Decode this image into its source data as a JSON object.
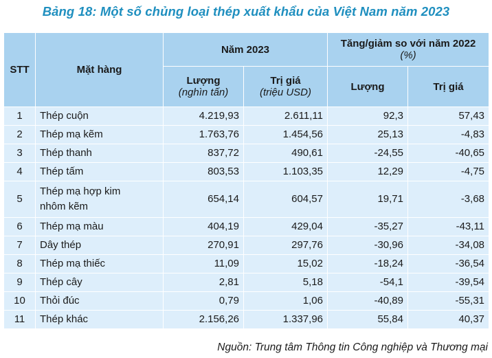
{
  "title": "Bảng 18: Một số chủng loại thép xuất khẩu của Việt Nam năm 2023",
  "header": {
    "stt": "STT",
    "item": "Mặt hàng",
    "year_group": "Năm 2023",
    "change_group": "Tăng/giảm so với năm 2022",
    "change_unit": "(%)",
    "qty": "Lượng",
    "qty_unit": "(nghìn tấn)",
    "value": "Trị giá",
    "value_unit": "(triệu USD)",
    "qty_change": "Lượng",
    "value_change": "Trị giá"
  },
  "rows": [
    {
      "stt": "1",
      "name": "Thép cuộn",
      "qty": "4.219,93",
      "value": "2.611,11",
      "qty_change": "92,3",
      "value_change": "57,43"
    },
    {
      "stt": "2",
      "name": "Thép mạ kẽm",
      "qty": "1.763,76",
      "value": "1.454,56",
      "qty_change": "25,13",
      "value_change": "-4,83"
    },
    {
      "stt": "3",
      "name": "Thép thanh",
      "qty": "837,72",
      "value": "490,61",
      "qty_change": "-24,55",
      "value_change": "-40,65"
    },
    {
      "stt": "4",
      "name": "Thép tấm",
      "qty": "803,53",
      "value": "1.103,35",
      "qty_change": "12,29",
      "value_change": "-4,75"
    },
    {
      "stt": "5",
      "name_line1": "Thép mạ hợp kim",
      "name_line2": "nhôm kẽm",
      "qty": "654,14",
      "value": "604,57",
      "qty_change": "19,71",
      "value_change": "-3,68"
    },
    {
      "stt": "6",
      "name": "Thép mạ màu",
      "qty": "404,19",
      "value": "429,04",
      "qty_change": "-35,27",
      "value_change": "-43,11"
    },
    {
      "stt": "7",
      "name": "Dây thép",
      "qty": "270,91",
      "value": "297,76",
      "qty_change": "-30,96",
      "value_change": "-34,08"
    },
    {
      "stt": "8",
      "name": "Thép mạ thiếc",
      "qty": "11,09",
      "value": "15,02",
      "qty_change": "-18,24",
      "value_change": "-36,54"
    },
    {
      "stt": "9",
      "name": "Thép cây",
      "qty": "2,81",
      "value": "5,18",
      "qty_change": "-54,1",
      "value_change": "-39,54"
    },
    {
      "stt": "10",
      "name": "Thỏi đúc",
      "qty": "0,79",
      "value": "1,06",
      "qty_change": "-40,89",
      "value_change": "-55,31"
    },
    {
      "stt": "11",
      "name": "Thép khác",
      "qty": "2.156,26",
      "value": "1.337,96",
      "qty_change": "55,84",
      "value_change": "40,37"
    }
  ],
  "source": "Nguồn: Trung tâm Thông tin Công nghiệp và Thương mại",
  "colors": {
    "title": "#1f8fbf",
    "header_bg": "#a9d2ef",
    "row_bg": "#ddeefb"
  }
}
